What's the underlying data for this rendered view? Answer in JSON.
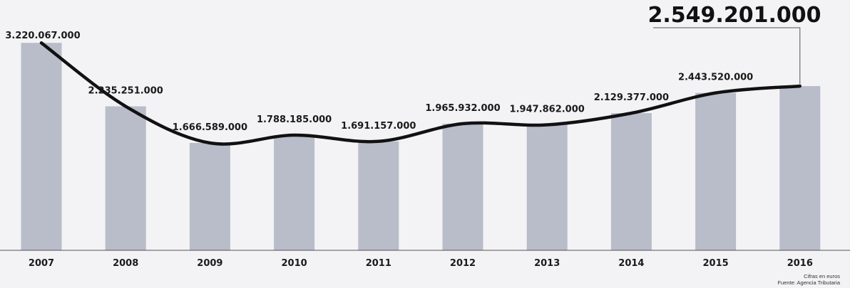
{
  "chart_data": {
    "type": "bar",
    "categories": [
      "2007",
      "2008",
      "2009",
      "2010",
      "2011",
      "2012",
      "2013",
      "2014",
      "2015",
      "2016"
    ],
    "values": [
      3220067000,
      2235251000,
      1666589000,
      1788185000,
      1691157000,
      1965932000,
      1947862000,
      2129377000,
      2443520000,
      2549201000
    ],
    "value_labels": [
      "3.220.067.000",
      "2.235.251.000",
      "1.666.589.000",
      "1.788.185.000",
      "1.691.157.000",
      "1.965.932.000",
      "1.947.862.000",
      "2.129.377.000",
      "2.443.520.000",
      "2.549.201.000"
    ],
    "overlay": "smooth trend line through bar tops",
    "ylim": [
      0,
      3400000000
    ],
    "grid": false,
    "legend": "none",
    "colors": {
      "bar": "#b9bcc9",
      "line": "#111111",
      "background": "#f3f3f5"
    }
  },
  "notes": {
    "unit": "Cifras en euros",
    "source": "Fuente: Agencia Tributaria"
  }
}
